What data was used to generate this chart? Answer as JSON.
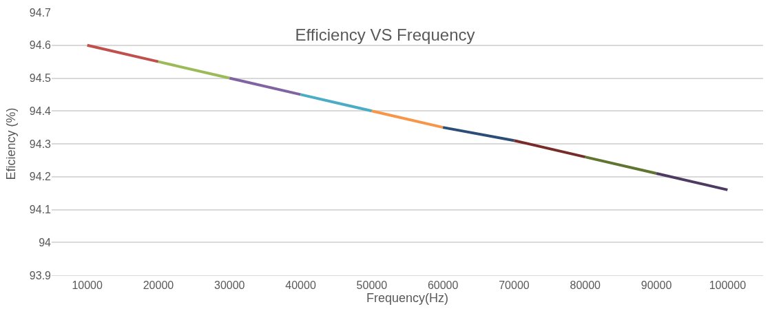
{
  "chart_data": {
    "type": "line",
    "title": "Efficiency VS Frequency",
    "xlabel": "Frequency(Hz)",
    "ylabel": "Eficiency (%)",
    "series": [
      {
        "x": [
          10000,
          20000
        ],
        "values": [
          94.6,
          94.55
        ],
        "color": "#c0504d"
      },
      {
        "x": [
          20000,
          30000
        ],
        "values": [
          94.55,
          94.5
        ],
        "color": "#9bbb59"
      },
      {
        "x": [
          30000,
          40000
        ],
        "values": [
          94.5,
          94.45
        ],
        "color": "#8064a2"
      },
      {
        "x": [
          40000,
          50000
        ],
        "values": [
          94.45,
          94.4
        ],
        "color": "#4bacc6"
      },
      {
        "x": [
          50000,
          60000
        ],
        "values": [
          94.4,
          94.35
        ],
        "color": "#f79646"
      },
      {
        "x": [
          60000,
          70000
        ],
        "values": [
          94.35,
          94.31
        ],
        "color": "#2c4d75"
      },
      {
        "x": [
          70000,
          80000
        ],
        "values": [
          94.31,
          94.26
        ],
        "color": "#772c2a"
      },
      {
        "x": [
          80000,
          90000
        ],
        "values": [
          94.26,
          94.21
        ],
        "color": "#5f7530"
      },
      {
        "x": [
          90000,
          100000
        ],
        "values": [
          94.21,
          94.16
        ],
        "color": "#4d3b62"
      }
    ],
    "xlim": [
      5000,
      105000
    ],
    "xticks": [
      10000,
      20000,
      30000,
      40000,
      50000,
      60000,
      70000,
      80000,
      90000,
      100000
    ],
    "ylim": [
      93.9,
      94.7
    ],
    "yticks": [
      93.9,
      94,
      94.1,
      94.2,
      94.3,
      94.4,
      94.5,
      94.6,
      94.7
    ],
    "grid": "y",
    "marker": "none",
    "line_style": "solid"
  }
}
